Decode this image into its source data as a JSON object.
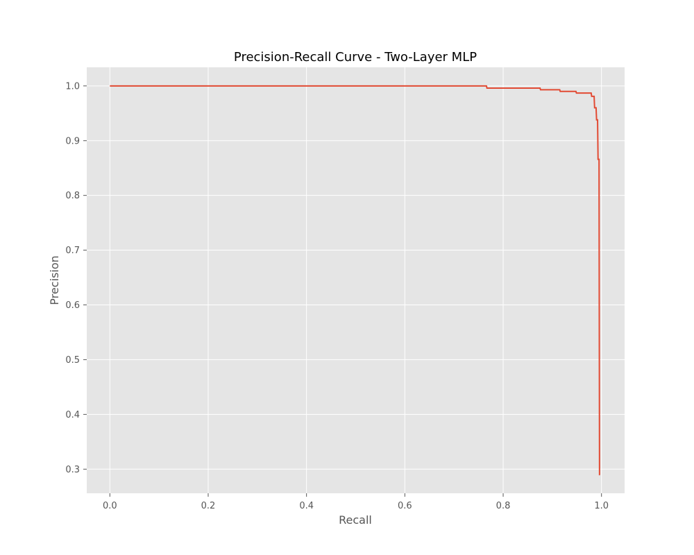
{
  "chart_data": {
    "type": "line",
    "title": "Precision-Recall Curve - Two-Layer MLP",
    "xlabel": "Recall",
    "ylabel": "Precision",
    "xlim": [
      -0.047,
      1.047
    ],
    "ylim": [
      0.256,
      1.034
    ],
    "xticks": [
      "0.0",
      "0.2",
      "0.4",
      "0.6",
      "0.8",
      "1.0"
    ],
    "yticks": [
      "0.3",
      "0.4",
      "0.5",
      "0.6",
      "0.7",
      "0.8",
      "0.9",
      "1.0"
    ],
    "grid": true,
    "background": "#e5e5e5",
    "series": [
      {
        "color": "#e24a33",
        "step": "post",
        "x": [
          0.0,
          0.766,
          0.767,
          0.875,
          0.876,
          0.915,
          0.916,
          0.948,
          0.949,
          0.979,
          0.98,
          0.985,
          0.986,
          0.989,
          0.99,
          0.992,
          0.993,
          0.995,
          0.996,
          0.997
        ],
        "y": [
          1.0,
          1.0,
          0.996,
          0.996,
          0.993,
          0.993,
          0.99,
          0.99,
          0.987,
          0.987,
          0.981,
          0.981,
          0.96,
          0.96,
          0.938,
          0.938,
          0.866,
          0.866,
          0.29,
          0.29
        ]
      }
    ]
  }
}
